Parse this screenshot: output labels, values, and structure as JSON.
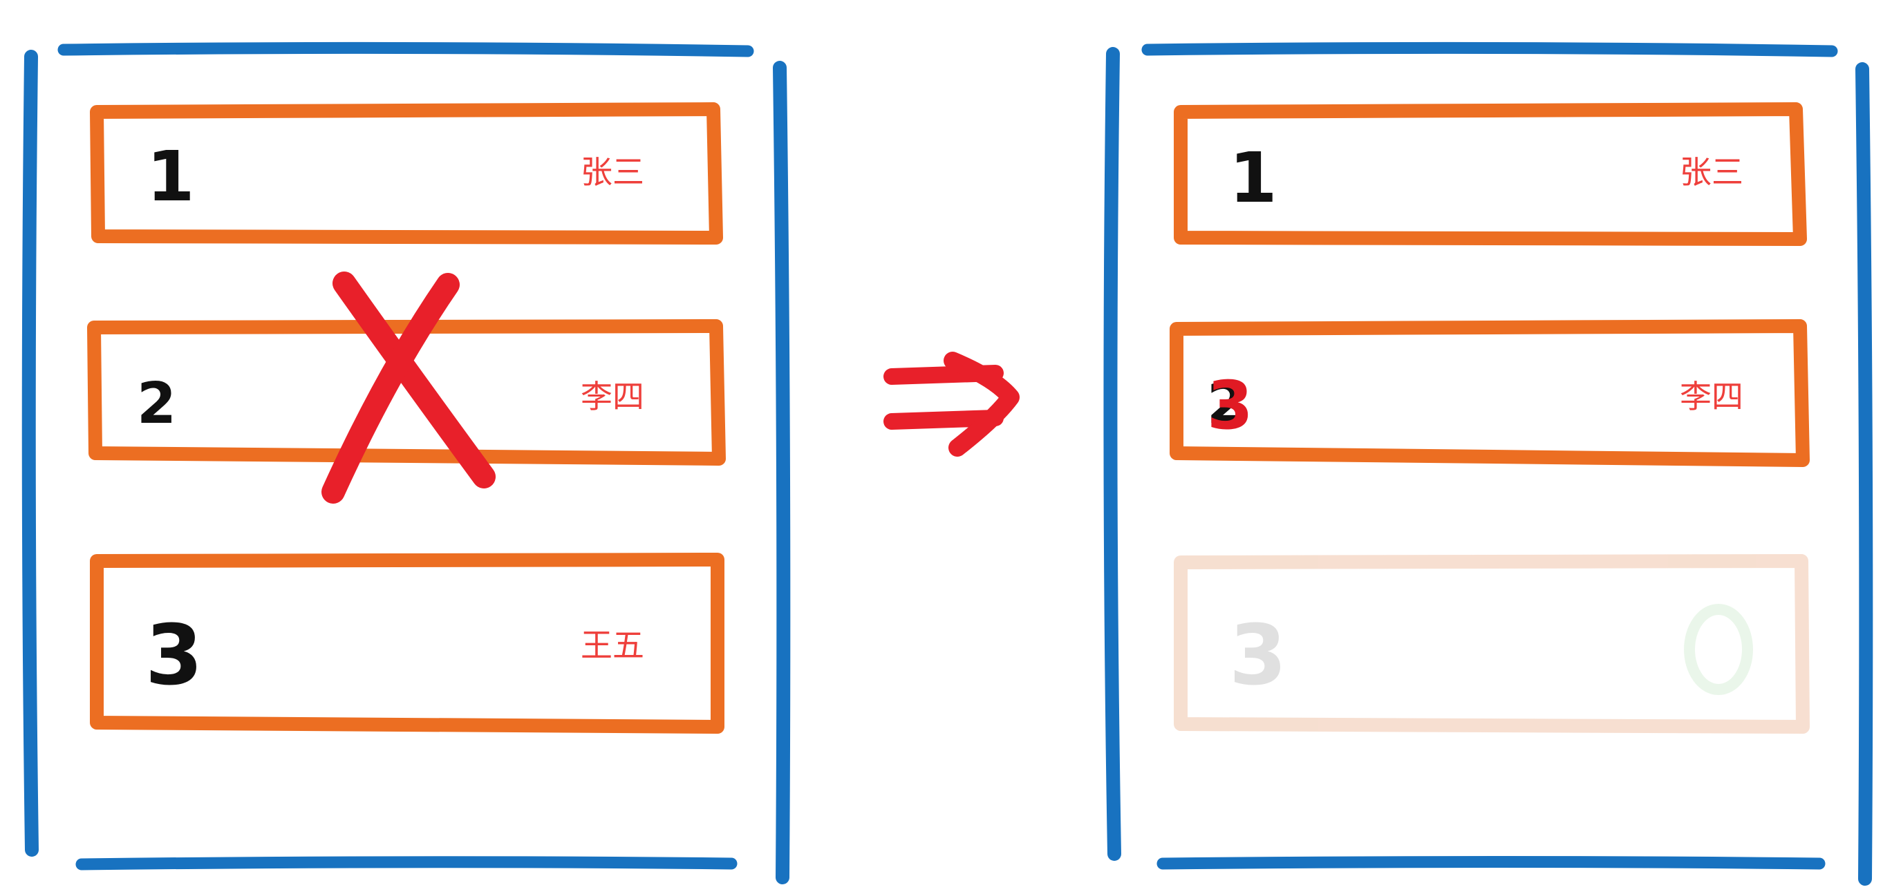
{
  "colors": {
    "frame": "#1872c0",
    "row_border": "#ec6e22",
    "digit": "#111111",
    "name": "#ee3f3b",
    "mark": "#e8202a",
    "faded_border": "#f6dccc",
    "faded_digit": "#dddddd",
    "faded_circle": "#e8f6e8"
  },
  "before": {
    "rows": [
      {
        "index": "1",
        "name": "张三"
      },
      {
        "index": "2",
        "name": "李四"
      },
      {
        "index": "3",
        "name": "王五"
      }
    ],
    "deleted_row": "2",
    "delete_mark": "cross-mark-icon"
  },
  "transition": {
    "icon": "double-arrow-right-icon"
  },
  "after": {
    "rows": [
      {
        "index": "1",
        "name": "张三"
      },
      {
        "index": "3",
        "name": "李四"
      },
      {
        "index": "3",
        "name": ""
      }
    ],
    "overwritten_digit": "2",
    "faded_row_icon": "circle-icon"
  }
}
